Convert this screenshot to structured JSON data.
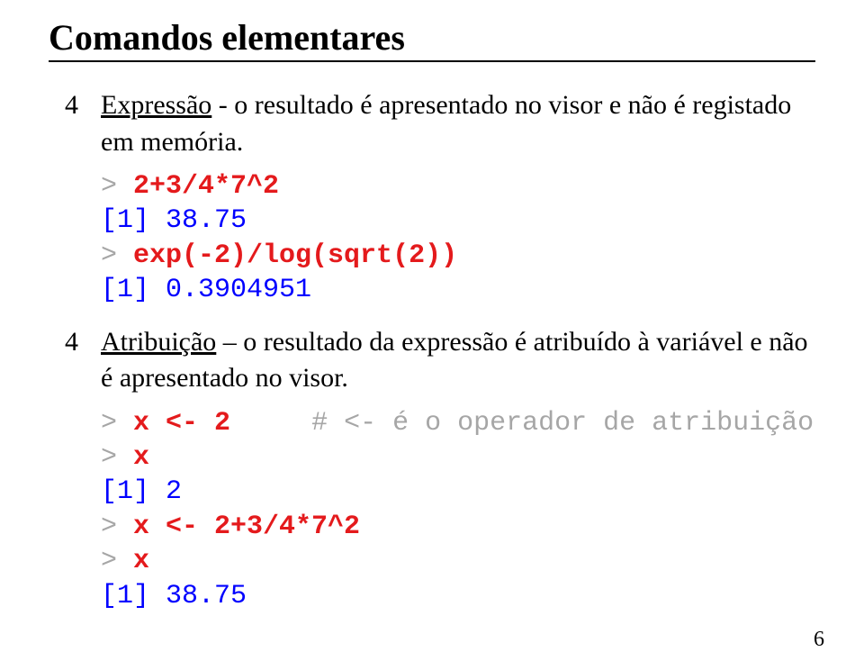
{
  "title": "Comandos elementares",
  "bullet_glyph": "4",
  "items": [
    {
      "underlined": "Expressão",
      "rest": " - o resultado é apresentado no visor e não é registado em memória."
    },
    {
      "underlined": "Atribuição",
      "rest": " – o resultado da expressão é atribuído à variável e não é apresentado no visor."
    }
  ],
  "code1": {
    "l1_prompt": "> ",
    "l1_cmd": "2+3/4*7^2",
    "l2_out": "[1] 38.75",
    "l3_prompt": "> ",
    "l3_cmd": "exp(-2)/log(sqrt(2))",
    "l4_out": "[1] 0.3904951"
  },
  "code2": {
    "l1_prompt": "> ",
    "l1_cmd": "x <- 2",
    "l1_pad": "     ",
    "l1_comment": "# <- é o operador de atribuição",
    "l2_prompt": "> ",
    "l2_cmd": "x",
    "l3_out": "[1] 2",
    "l4_prompt": "> ",
    "l4_cmd": "x <- 2+3/4*7^2",
    "l5_prompt": "> ",
    "l5_cmd": "x",
    "l6_out": "[1] 38.75"
  },
  "page_number": "6",
  "colors": {
    "prompt": "#a6a6a6",
    "cmd": "#e41a1c",
    "output": "#0000ff",
    "comment": "#a6a6a6",
    "text": "#000000",
    "background": "#ffffff"
  }
}
